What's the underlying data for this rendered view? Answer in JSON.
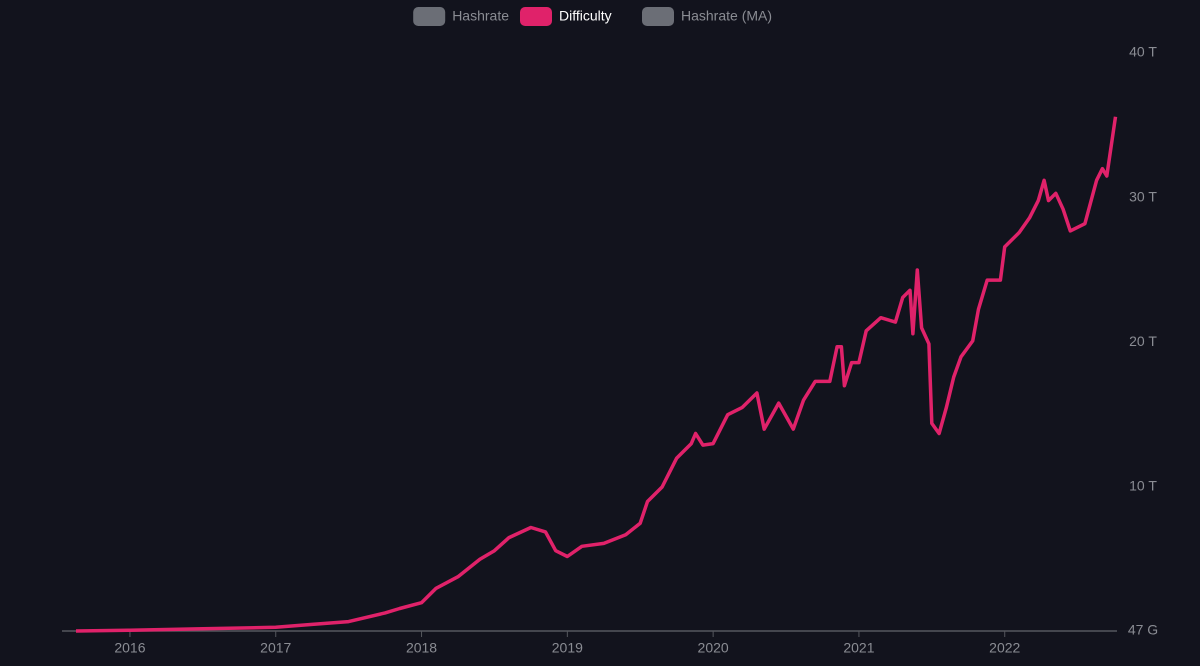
{
  "chart_data": {
    "type": "line",
    "x": [
      2015.63,
      2016.0,
      2016.5,
      2017.0,
      2017.25,
      2017.5,
      2017.75,
      2017.85,
      2018.0,
      2018.1,
      2018.25,
      2018.4,
      2018.5,
      2018.6,
      2018.75,
      2018.85,
      2018.92,
      2019.0,
      2019.1,
      2019.25,
      2019.4,
      2019.5,
      2019.55,
      2019.65,
      2019.75,
      2019.85,
      2019.88,
      2019.93,
      2020.0,
      2020.1,
      2020.2,
      2020.3,
      2020.35,
      2020.45,
      2020.55,
      2020.62,
      2020.7,
      2020.8,
      2020.85,
      2020.88,
      2020.9,
      2020.95,
      2021.0,
      2021.05,
      2021.15,
      2021.25,
      2021.3,
      2021.35,
      2021.37,
      2021.4,
      2021.43,
      2021.48,
      2021.5,
      2021.55,
      2021.6,
      2021.65,
      2021.7,
      2021.78,
      2021.82,
      2021.88,
      2021.97,
      2022.0,
      2022.1,
      2022.17,
      2022.23,
      2022.27,
      2022.3,
      2022.35,
      2022.4,
      2022.45,
      2022.55,
      2022.63,
      2022.67,
      2022.7,
      2022.76
    ],
    "series": [
      {
        "name": "Hashrate",
        "color": "#6b6e76",
        "visible": false,
        "values": null
      },
      {
        "name": "Difficulty",
        "color": "#e0226a",
        "visible": true,
        "values": [
          0.05,
          0.1,
          0.2,
          0.3,
          0.5,
          0.7,
          1.3,
          1.6,
          2.0,
          3.0,
          3.8,
          5.0,
          5.6,
          6.5,
          7.2,
          6.9,
          5.6,
          5.2,
          5.9,
          6.1,
          6.7,
          7.5,
          9.0,
          10.0,
          12.0,
          13.0,
          13.7,
          12.9,
          13.0,
          15.0,
          15.5,
          16.5,
          14.0,
          15.8,
          14.0,
          16.0,
          17.3,
          17.3,
          19.7,
          19.7,
          17.0,
          18.6,
          18.6,
          20.8,
          21.7,
          21.4,
          23.1,
          23.6,
          20.6,
          25.0,
          21.0,
          19.9,
          14.4,
          13.7,
          15.5,
          17.6,
          19.0,
          20.1,
          22.3,
          24.3,
          24.3,
          26.6,
          27.6,
          28.6,
          29.8,
          31.2,
          29.8,
          30.3,
          29.2,
          27.7,
          28.2,
          31.2,
          32.0,
          31.5,
          35.6
        ]
      },
      {
        "name": "Hashrate (MA)",
        "color": "#6b6e76",
        "visible": false,
        "values": null
      }
    ],
    "xlim": [
      2015.63,
      2022.77
    ],
    "xticks": [
      2016,
      2017,
      2018,
      2019,
      2020,
      2021,
      2022
    ],
    "ylim": [
      0.047,
      40
    ],
    "yticks": [
      {
        "value": 0.047,
        "label": "47 G"
      },
      {
        "value": 10,
        "label": "10 T"
      },
      {
        "value": 20,
        "label": "20 T"
      },
      {
        "value": 30,
        "label": "30 T"
      },
      {
        "value": 40,
        "label": "40 T"
      }
    ],
    "grid": false
  }
}
